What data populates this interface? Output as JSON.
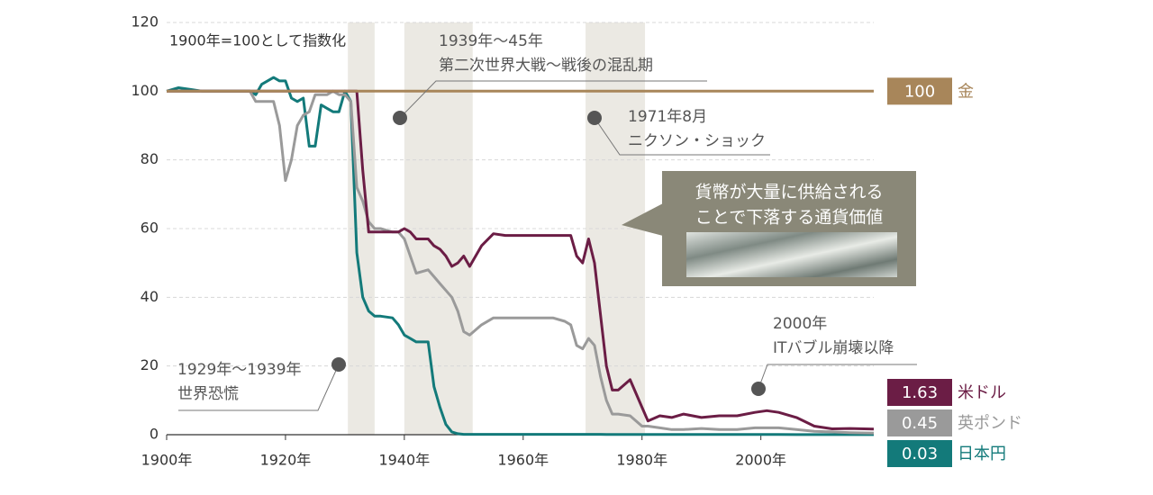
{
  "chart_data": {
    "type": "line",
    "subtitle": "1900年=100として指数化",
    "callout": [
      "貨幣が大量に供給される",
      "ことで下落する通貨価値"
    ],
    "annotations": [
      {
        "lines": [
          "1939年～45年",
          "第二次世界大戦～戦後の混乱期"
        ]
      },
      {
        "lines": [
          "1971年8月",
          "ニクソン・ショック"
        ]
      },
      {
        "lines": [
          "1929年～1939年",
          "世界恐慌"
        ]
      },
      {
        "lines": [
          "2000年",
          "ITバブル崩壊以降"
        ]
      }
    ],
    "shaded_periods": [
      [
        1930.5,
        1935
      ],
      [
        1940,
        1951.5
      ],
      [
        1970.5,
        1980.5
      ]
    ],
    "xlim": [
      1900,
      2019
    ],
    "xticks": [
      {
        "value": 1900,
        "label": "1900年"
      },
      {
        "value": 1920,
        "label": "1920年"
      },
      {
        "value": 1940,
        "label": "1940年"
      },
      {
        "value": 1960,
        "label": "1960年"
      },
      {
        "value": 1980,
        "label": "1980年"
      },
      {
        "value": 2000,
        "label": "2000年"
      }
    ],
    "ylim": [
      0,
      120
    ],
    "yticks": [
      0,
      20,
      40,
      60,
      80,
      100,
      120
    ],
    "grid": true,
    "x": [
      1900,
      1902,
      1904,
      1906,
      1908,
      1910,
      1912,
      1914,
      1915,
      1916,
      1918,
      1919,
      1920,
      1921,
      1922,
      1923,
      1924,
      1925,
      1926,
      1927,
      1928,
      1929,
      1930,
      1931,
      1932,
      1933,
      1934,
      1935,
      1936,
      1938,
      1939,
      1940,
      1941,
      1942,
      1944,
      1945,
      1946,
      1947,
      1948,
      1949,
      1950,
      1951,
      1953,
      1955,
      1957,
      1959,
      1961,
      1963,
      1965,
      1967,
      1968,
      1969,
      1970,
      1971,
      1972,
      1973,
      1974,
      1975,
      1976,
      1978,
      1980,
      1981,
      1983,
      1985,
      1987,
      1990,
      1993,
      1996,
      1999,
      2001,
      2003,
      2006,
      2009,
      2012,
      2015,
      2019
    ],
    "series": [
      {
        "name": "金",
        "color": "#a8865a",
        "values": [
          100,
          100,
          100,
          100,
          100,
          100,
          100,
          100,
          100,
          100,
          100,
          100,
          100,
          100,
          100,
          100,
          100,
          100,
          100,
          100,
          100,
          100,
          100,
          100,
          100,
          100,
          100,
          100,
          100,
          100,
          100,
          100,
          100,
          100,
          100,
          100,
          100,
          100,
          100,
          100,
          100,
          100,
          100,
          100,
          100,
          100,
          100,
          100,
          100,
          100,
          100,
          100,
          100,
          100,
          100,
          100,
          100,
          100,
          100,
          100,
          100,
          100,
          100,
          100,
          100,
          100,
          100,
          100,
          100,
          100,
          100,
          100,
          100,
          100,
          100,
          100
        ]
      },
      {
        "name": "米ドル",
        "color": "#6b1d45",
        "values": [
          100,
          100,
          100,
          100,
          100,
          100,
          100,
          100,
          100,
          100,
          100,
          100,
          100,
          100,
          100,
          100,
          100,
          100,
          100,
          100,
          100,
          100,
          100,
          100,
          100,
          77,
          59,
          59,
          59,
          59,
          59,
          60,
          59,
          57,
          57,
          55,
          54,
          52,
          49,
          50,
          52,
          49,
          55,
          58.5,
          58,
          58,
          58,
          58,
          58,
          58,
          58,
          52,
          50,
          57,
          50,
          35,
          20,
          13,
          13,
          16,
          8,
          4,
          5.5,
          5,
          6,
          5,
          5.5,
          5.5,
          6.5,
          7,
          6.5,
          5,
          2.5,
          1.7,
          1.8,
          1.63
        ]
      },
      {
        "name": "英ポンド",
        "color": "#9a9a9a",
        "values": [
          100,
          100,
          100,
          100,
          100,
          100,
          100,
          100,
          97,
          97,
          97,
          90,
          74,
          80,
          90,
          93,
          94,
          99,
          99,
          99,
          100,
          99,
          99,
          97,
          72,
          68,
          62,
          60,
          60,
          59,
          59,
          57,
          52,
          47,
          48,
          46,
          44,
          42,
          40,
          36,
          30,
          29,
          32,
          34,
          34,
          34,
          34,
          34,
          34,
          33,
          32,
          26,
          25,
          28,
          26,
          17,
          10,
          6,
          6,
          5.5,
          2.5,
          2.5,
          2,
          1.5,
          1.5,
          1.8,
          1.5,
          1.5,
          2,
          2,
          2,
          1.5,
          1,
          0.8,
          0.6,
          0.45
        ]
      },
      {
        "name": "日本円",
        "color": "#137a7a",
        "values": [
          100,
          101,
          100.5,
          100,
          100,
          100,
          100,
          100,
          99,
          102,
          104,
          103,
          103,
          98,
          97,
          98,
          84,
          84,
          96,
          95,
          94,
          94,
          100,
          97,
          53,
          40,
          36,
          34.5,
          34.5,
          34,
          32,
          29,
          28,
          27,
          27,
          14,
          8,
          3,
          0.8,
          0.3,
          0.1,
          0.1,
          0.1,
          0.1,
          0.1,
          0.1,
          0.1,
          0.1,
          0.1,
          0.1,
          0.1,
          0.1,
          0.1,
          0.1,
          0.1,
          0.1,
          0.08,
          0.08,
          0.07,
          0.07,
          0.06,
          0.06,
          0.05,
          0.05,
          0.05,
          0.04,
          0.04,
          0.04,
          0.04,
          0.04,
          0.04,
          0.03,
          0.03,
          0.03,
          0.03,
          0.03
        ]
      }
    ]
  }
}
